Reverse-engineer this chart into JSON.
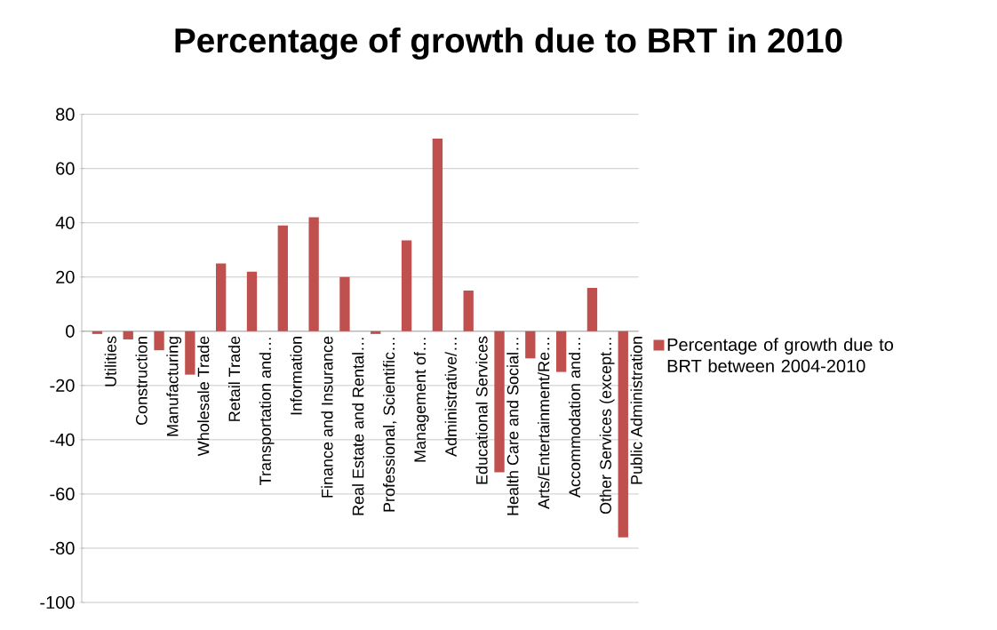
{
  "chart_data": {
    "type": "bar",
    "title": "Percentage of growth due to BRT in 2010",
    "categories": [
      "Utilities",
      "Construction",
      "Manufacturing",
      "Wholesale Trade",
      "Retail Trade",
      "Transportation and…",
      "Information",
      "Finance and Insurance",
      "Real Estate and Rental…",
      "Professional, Scientific…",
      "Management of…",
      "Administrative/…",
      "Educational Services",
      "Health Care and Social…",
      "Arts/Entertainment/Re…",
      "Accommodation and…",
      "Other Services (except…",
      "Public Administration"
    ],
    "series": [
      {
        "name": "Percentage of growth due to BRT between 2004-2010",
        "color": "#c0504d",
        "values": [
          -1,
          -3,
          -7,
          -16,
          25,
          22,
          39,
          42,
          20,
          -1,
          33.5,
          71,
          15,
          -52,
          -10,
          -15,
          16,
          -76
        ]
      }
    ],
    "ylim": [
      -100,
      80
    ],
    "yticks": [
      -100,
      -80,
      -60,
      -40,
      -20,
      0,
      20,
      40,
      60,
      80
    ],
    "grid": "y",
    "legend": "right"
  }
}
